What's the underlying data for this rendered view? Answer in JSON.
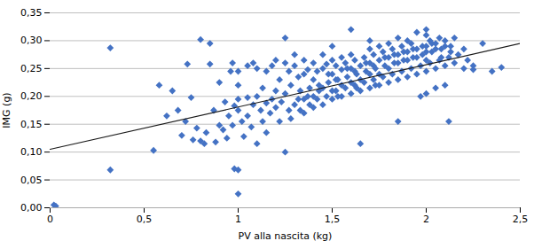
{
  "chart_data": {
    "type": "scatter",
    "xlabel": "PV alla nascita (kg)",
    "ylabel": "IMG (g)",
    "xlim": [
      0,
      2.5
    ],
    "ylim": [
      0,
      0.35
    ],
    "xticks": [
      0,
      {
        "value": 0.5,
        "label": "0,5"
      },
      1,
      {
        "value": 1.5,
        "label": "1,5"
      },
      2,
      {
        "value": 2.5,
        "label": "2,5"
      }
    ],
    "yticks": [
      {
        "value": 0.0,
        "label": "0,00"
      },
      {
        "value": 0.05,
        "label": "0,05"
      },
      {
        "value": 0.1,
        "label": "0,10"
      },
      {
        "value": 0.15,
        "label": "0,15"
      },
      {
        "value": 0.2,
        "label": "0,20"
      },
      {
        "value": 0.25,
        "label": "0,25"
      },
      {
        "value": 0.3,
        "label": "0,30"
      },
      {
        "value": 0.35,
        "label": "0,35"
      }
    ],
    "grid": "y",
    "series": [
      {
        "type": "scatter",
        "color": "#4472C4",
        "marker": "diamond",
        "x": [
          0.02,
          0.03,
          0.32,
          0.32,
          0.55,
          0.58,
          0.62,
          0.65,
          0.68,
          0.7,
          0.72,
          0.73,
          0.75,
          0.76,
          0.78,
          0.8,
          0.8,
          0.82,
          0.83,
          0.85,
          0.85,
          0.87,
          0.88,
          0.9,
          0.9,
          0.92,
          0.93,
          0.94,
          0.95,
          0.96,
          0.97,
          0.97,
          0.98,
          0.98,
          1.0,
          1.0,
          1.0,
          1.0,
          1.0,
          1.0,
          1.02,
          1.03,
          1.05,
          1.05,
          1.05,
          1.07,
          1.08,
          1.08,
          1.1,
          1.1,
          1.1,
          1.12,
          1.13,
          1.13,
          1.15,
          1.15,
          1.15,
          1.17,
          1.18,
          1.18,
          1.2,
          1.2,
          1.2,
          1.22,
          1.22,
          1.23,
          1.25,
          1.25,
          1.25,
          1.25,
          1.27,
          1.27,
          1.28,
          1.28,
          1.3,
          1.3,
          1.3,
          1.32,
          1.32,
          1.33,
          1.33,
          1.35,
          1.35,
          1.35,
          1.35,
          1.37,
          1.37,
          1.38,
          1.38,
          1.4,
          1.4,
          1.4,
          1.4,
          1.42,
          1.42,
          1.43,
          1.43,
          1.45,
          1.45,
          1.45,
          1.45,
          1.47,
          1.47,
          1.48,
          1.48,
          1.5,
          1.5,
          1.5,
          1.5,
          1.5,
          1.52,
          1.52,
          1.52,
          1.53,
          1.53,
          1.55,
          1.55,
          1.55,
          1.55,
          1.57,
          1.57,
          1.58,
          1.58,
          1.6,
          1.6,
          1.6,
          1.6,
          1.6,
          1.62,
          1.62,
          1.62,
          1.63,
          1.63,
          1.65,
          1.65,
          1.65,
          1.65,
          1.67,
          1.67,
          1.68,
          1.68,
          1.7,
          1.7,
          1.7,
          1.7,
          1.7,
          1.72,
          1.72,
          1.72,
          1.73,
          1.73,
          1.75,
          1.75,
          1.75,
          1.75,
          1.77,
          1.77,
          1.78,
          1.78,
          1.8,
          1.8,
          1.8,
          1.8,
          1.82,
          1.82,
          1.83,
          1.83,
          1.85,
          1.85,
          1.85,
          1.85,
          1.85,
          1.87,
          1.87,
          1.88,
          1.88,
          1.9,
          1.9,
          1.9,
          1.9,
          1.92,
          1.92,
          1.93,
          1.93,
          1.95,
          1.95,
          1.95,
          1.95,
          1.97,
          1.97,
          1.98,
          1.98,
          2.0,
          2.0,
          2.0,
          2.0,
          2.0,
          2.0,
          2.0,
          2.02,
          2.02,
          2.03,
          2.03,
          2.05,
          2.05,
          2.05,
          2.05,
          2.07,
          2.07,
          2.08,
          2.08,
          2.1,
          2.1,
          2.1,
          2.1,
          2.12,
          2.12,
          2.13,
          2.13,
          2.15,
          2.15,
          2.17,
          2.2,
          2.2,
          2.22,
          2.25,
          2.25,
          2.3,
          2.35,
          2.4
        ],
        "values": [
          0.005,
          0.003,
          0.287,
          0.068,
          0.103,
          0.22,
          0.165,
          0.21,
          0.175,
          0.13,
          0.155,
          0.258,
          0.198,
          0.122,
          0.143,
          0.12,
          0.302,
          0.115,
          0.135,
          0.295,
          0.258,
          0.175,
          0.118,
          0.148,
          0.225,
          0.14,
          0.19,
          0.125,
          0.165,
          0.245,
          0.26,
          0.148,
          0.183,
          0.07,
          0.025,
          0.068,
          0.175,
          0.22,
          0.245,
          0.195,
          0.155,
          0.128,
          0.165,
          0.198,
          0.255,
          0.145,
          0.185,
          0.26,
          0.115,
          0.2,
          0.25,
          0.175,
          0.155,
          0.215,
          0.135,
          0.188,
          0.245,
          0.17,
          0.195,
          0.255,
          0.18,
          0.21,
          0.265,
          0.155,
          0.23,
          0.19,
          0.1,
          0.205,
          0.26,
          0.305,
          0.175,
          0.245,
          0.16,
          0.22,
          0.185,
          0.255,
          0.275,
          0.195,
          0.235,
          0.21,
          0.175,
          0.17,
          0.24,
          0.265,
          0.195,
          0.2,
          0.248,
          0.215,
          0.185,
          0.18,
          0.23,
          0.26,
          0.2,
          0.195,
          0.245,
          0.22,
          0.21,
          0.185,
          0.25,
          0.275,
          0.215,
          0.2,
          0.258,
          0.225,
          0.24,
          0.195,
          0.24,
          0.265,
          0.29,
          0.21,
          0.21,
          0.255,
          0.23,
          0.23,
          0.2,
          0.2,
          0.248,
          0.27,
          0.22,
          0.215,
          0.26,
          0.235,
          0.25,
          0.205,
          0.25,
          0.275,
          0.32,
          0.225,
          0.22,
          0.265,
          0.245,
          0.24,
          0.215,
          0.21,
          0.255,
          0.115,
          0.23,
          0.225,
          0.27,
          0.245,
          0.26,
          0.215,
          0.26,
          0.285,
          0.3,
          0.24,
          0.23,
          0.275,
          0.255,
          0.25,
          0.22,
          0.22,
          0.265,
          0.29,
          0.24,
          0.235,
          0.28,
          0.255,
          0.27,
          0.225,
          0.27,
          0.295,
          0.25,
          0.24,
          0.285,
          0.26,
          0.275,
          0.23,
          0.275,
          0.155,
          0.305,
          0.26,
          0.245,
          0.29,
          0.265,
          0.28,
          0.235,
          0.28,
          0.3,
          0.265,
          0.25,
          0.295,
          0.27,
          0.285,
          0.24,
          0.285,
          0.315,
          0.27,
          0.255,
          0.2,
          0.275,
          0.29,
          0.245,
          0.29,
          0.31,
          0.32,
          0.205,
          0.265,
          0.28,
          0.26,
          0.3,
          0.28,
          0.295,
          0.25,
          0.295,
          0.215,
          0.285,
          0.265,
          0.305,
          0.285,
          0.27,
          0.255,
          0.3,
          0.22,
          0.29,
          0.27,
          0.155,
          0.29,
          0.28,
          0.26,
          0.305,
          0.275,
          0.25,
          0.285,
          0.265,
          0.255,
          0.248,
          0.295,
          0.245,
          0.252
        ]
      },
      {
        "type": "line",
        "color": "#1a1a1a",
        "x": [
          0,
          2.5
        ],
        "values": [
          0.105,
          0.295
        ]
      }
    ]
  }
}
